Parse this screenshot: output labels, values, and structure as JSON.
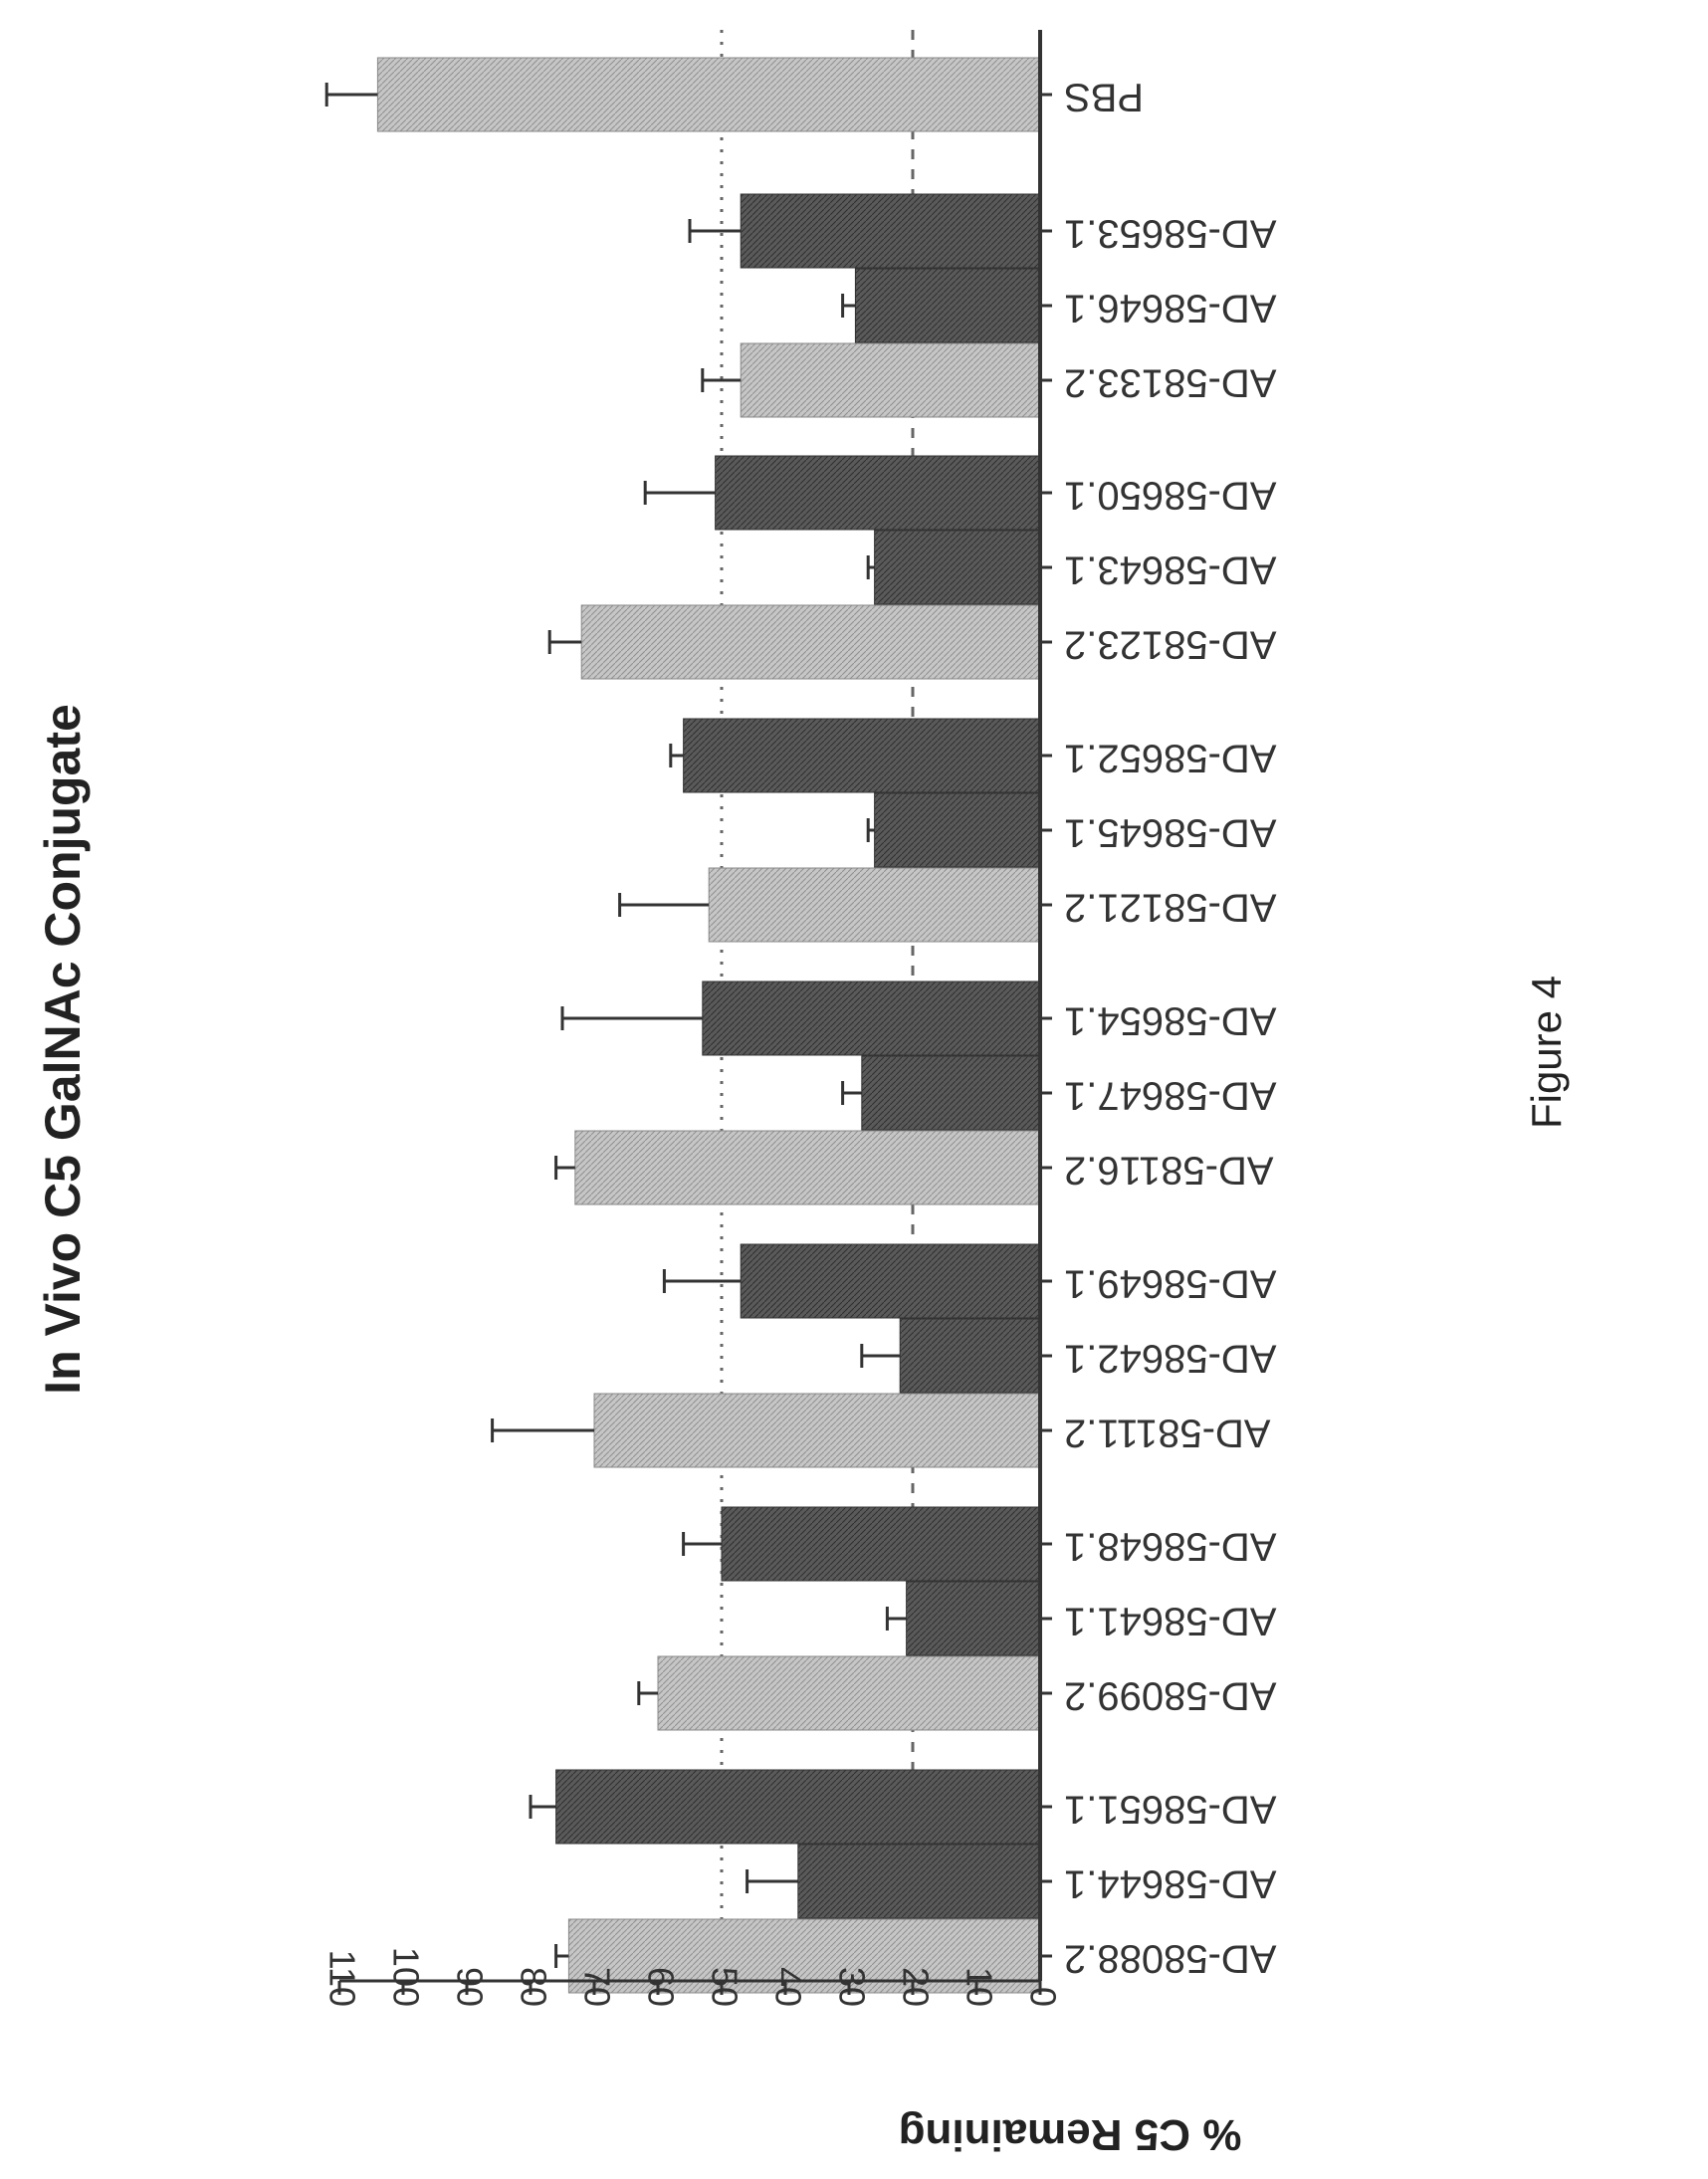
{
  "chart_data": {
    "type": "bar",
    "title": "In Vivo C5 GalNAc Conjugate",
    "ylabel": "% C5 Remaining",
    "xlabel": "",
    "ylim": [
      0,
      110
    ],
    "yticks": [
      0,
      10,
      20,
      30,
      40,
      50,
      60,
      70,
      80,
      90,
      100,
      110
    ],
    "reference_lines": [
      20,
      50
    ],
    "grid": false,
    "categories": [
      "AD-58088.2",
      "AD-58644.1",
      "AD-58651.1",
      "AD-58099.2",
      "AD-58641.1",
      "AD-58648.1",
      "AD-58111.2",
      "AD-58642.1",
      "AD-58649.1",
      "AD-58116.2",
      "AD-58647.1",
      "AD-58654.1",
      "AD-58121.2",
      "AD-58645.1",
      "AD-58652.1",
      "AD-58123.2",
      "AD-58643.1",
      "AD-58650.1",
      "AD-58133.2",
      "AD-58646.1",
      "AD-58653.1",
      "PBS"
    ],
    "values": [
      74,
      38,
      76,
      60,
      21,
      50,
      70,
      22,
      47,
      73,
      28,
      53,
      52,
      26,
      56,
      72,
      26,
      51,
      47,
      29,
      47,
      104
    ],
    "errors": [
      2,
      8,
      4,
      3,
      3,
      6,
      16,
      6,
      12,
      3,
      3,
      22,
      14,
      1,
      2,
      5,
      1,
      11,
      6,
      2,
      8,
      8
    ],
    "bar_colors": [
      "light",
      "dark",
      "dark",
      "light",
      "dark",
      "dark",
      "light",
      "dark",
      "dark",
      "light",
      "dark",
      "dark",
      "light",
      "dark",
      "dark",
      "light",
      "dark",
      "dark",
      "light",
      "dark",
      "dark",
      "light"
    ],
    "colors": {
      "light": "#bdbdbd",
      "dark": "#555555",
      "axis": "#333333"
    }
  },
  "caption": "Figure 4"
}
